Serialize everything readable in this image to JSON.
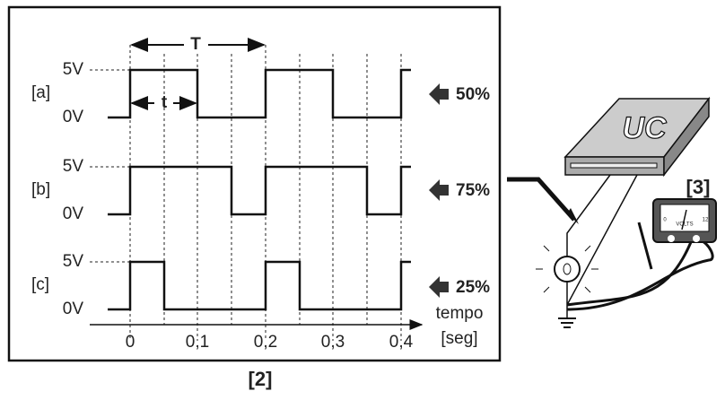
{
  "title": "[2]",
  "rows": [
    {
      "tag": "[a]",
      "high": "5V",
      "low": "0V",
      "duty": "50%"
    },
    {
      "tag": "[b]",
      "high": "5V",
      "low": "0V",
      "duty": "75%"
    },
    {
      "tag": "[c]",
      "high": "5V",
      "low": "0V",
      "duty": "25%"
    }
  ],
  "period_label": "T",
  "pulse_label": "t",
  "axis": {
    "ticks": [
      "0",
      "0,1",
      "0,2",
      "0,3",
      "0,4"
    ],
    "label": "tempo",
    "unit": "[seg]"
  },
  "device": {
    "label": "[3]",
    "box": "UC",
    "meter": "VOLTS",
    "meter_min": "0",
    "meter_max": "12"
  }
}
